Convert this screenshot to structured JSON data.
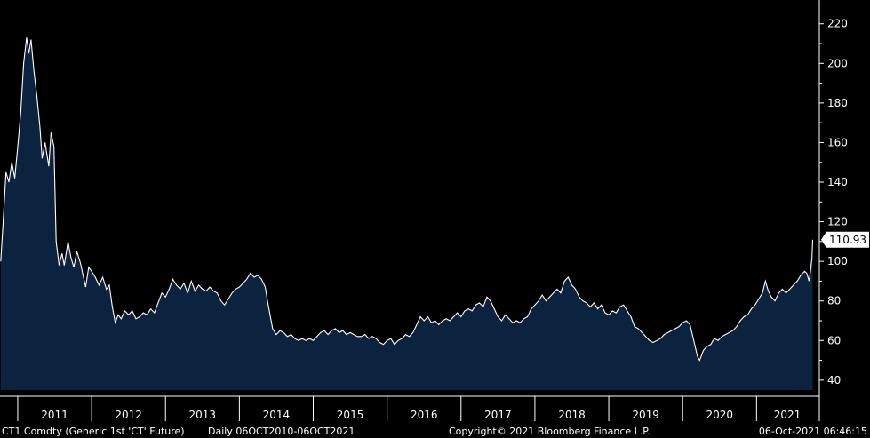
{
  "chart_data": {
    "type": "area",
    "ticker": "CT1 Comdty (Generic 1st 'CT' Future)",
    "frequency_range": "Daily 06OCT2010-06OCT2021",
    "copyright": "Copyright© 2021 Bloomberg Finance L.P.",
    "timestamp": "06-Oct-2021 06:46:15",
    "last_value": "110.93",
    "ylim": [
      35,
      232
    ],
    "xlim": [
      2010.76,
      2021.85
    ],
    "y_ticks": [
      40,
      60,
      80,
      100,
      120,
      140,
      160,
      180,
      200,
      220
    ],
    "x_ticks": [
      "2011",
      "2012",
      "2013",
      "2014",
      "2015",
      "2016",
      "2017",
      "2018",
      "2019",
      "2020",
      "2021"
    ],
    "grid": false,
    "colors": {
      "line": "#ffffff",
      "fill": "#0c2340",
      "background": "#000000",
      "label_bg": "#ffffff"
    },
    "points": [
      [
        2010.77,
        100
      ],
      [
        2010.8,
        118
      ],
      [
        2010.84,
        145
      ],
      [
        2010.88,
        140
      ],
      [
        2010.92,
        150
      ],
      [
        2010.96,
        142
      ],
      [
        2011.0,
        158
      ],
      [
        2011.04,
        175
      ],
      [
        2011.08,
        200
      ],
      [
        2011.12,
        213
      ],
      [
        2011.15,
        205
      ],
      [
        2011.18,
        212
      ],
      [
        2011.22,
        196
      ],
      [
        2011.26,
        183
      ],
      [
        2011.3,
        168
      ],
      [
        2011.33,
        152
      ],
      [
        2011.37,
        160
      ],
      [
        2011.42,
        148
      ],
      [
        2011.45,
        165
      ],
      [
        2011.49,
        158
      ],
      [
        2011.52,
        110
      ],
      [
        2011.56,
        98
      ],
      [
        2011.6,
        104
      ],
      [
        2011.63,
        98
      ],
      [
        2011.68,
        110
      ],
      [
        2011.72,
        102
      ],
      [
        2011.76,
        97
      ],
      [
        2011.8,
        105
      ],
      [
        2011.85,
        99
      ],
      [
        2011.89,
        92
      ],
      [
        2011.92,
        87
      ],
      [
        2011.96,
        97
      ],
      [
        2012.0,
        95
      ],
      [
        2012.05,
        92
      ],
      [
        2012.1,
        88
      ],
      [
        2012.15,
        92
      ],
      [
        2012.2,
        86
      ],
      [
        2012.24,
        88
      ],
      [
        2012.28,
        77
      ],
      [
        2012.32,
        69
      ],
      [
        2012.36,
        73
      ],
      [
        2012.4,
        71
      ],
      [
        2012.45,
        75
      ],
      [
        2012.5,
        73
      ],
      [
        2012.55,
        75
      ],
      [
        2012.6,
        71
      ],
      [
        2012.65,
        72
      ],
      [
        2012.7,
        74
      ],
      [
        2012.75,
        73
      ],
      [
        2012.8,
        76
      ],
      [
        2012.85,
        74
      ],
      [
        2012.9,
        79
      ],
      [
        2012.95,
        84
      ],
      [
        2013.0,
        82
      ],
      [
        2013.05,
        86
      ],
      [
        2013.1,
        91
      ],
      [
        2013.15,
        88
      ],
      [
        2013.2,
        86
      ],
      [
        2013.25,
        89
      ],
      [
        2013.3,
        84
      ],
      [
        2013.35,
        90
      ],
      [
        2013.4,
        85
      ],
      [
        2013.45,
        88
      ],
      [
        2013.5,
        86
      ],
      [
        2013.55,
        85
      ],
      [
        2013.6,
        87
      ],
      [
        2013.65,
        85
      ],
      [
        2013.7,
        84
      ],
      [
        2013.75,
        80
      ],
      [
        2013.8,
        78
      ],
      [
        2013.85,
        81
      ],
      [
        2013.9,
        84
      ],
      [
        2013.95,
        86
      ],
      [
        2014.0,
        87
      ],
      [
        2014.05,
        89
      ],
      [
        2014.1,
        91
      ],
      [
        2014.15,
        94
      ],
      [
        2014.2,
        92
      ],
      [
        2014.25,
        93
      ],
      [
        2014.3,
        91
      ],
      [
        2014.35,
        87
      ],
      [
        2014.38,
        80
      ],
      [
        2014.42,
        72
      ],
      [
        2014.45,
        66
      ],
      [
        2014.5,
        63
      ],
      [
        2014.55,
        65
      ],
      [
        2014.6,
        64
      ],
      [
        2014.65,
        62
      ],
      [
        2014.7,
        63
      ],
      [
        2014.75,
        61
      ],
      [
        2014.8,
        60
      ],
      [
        2014.85,
        61
      ],
      [
        2014.9,
        60
      ],
      [
        2014.95,
        61
      ],
      [
        2015.0,
        60
      ],
      [
        2015.05,
        62
      ],
      [
        2015.1,
        64
      ],
      [
        2015.15,
        65
      ],
      [
        2015.2,
        63
      ],
      [
        2015.25,
        65
      ],
      [
        2015.3,
        66
      ],
      [
        2015.35,
        64
      ],
      [
        2015.4,
        65
      ],
      [
        2015.45,
        63
      ],
      [
        2015.5,
        64
      ],
      [
        2015.55,
        63
      ],
      [
        2015.6,
        62
      ],
      [
        2015.65,
        62
      ],
      [
        2015.7,
        63
      ],
      [
        2015.75,
        61
      ],
      [
        2015.8,
        62
      ],
      [
        2015.85,
        61
      ],
      [
        2015.9,
        59
      ],
      [
        2015.95,
        58
      ],
      [
        2016.0,
        60
      ],
      [
        2016.05,
        61
      ],
      [
        2016.1,
        58
      ],
      [
        2016.15,
        60
      ],
      [
        2016.2,
        61
      ],
      [
        2016.25,
        63
      ],
      [
        2016.3,
        62
      ],
      [
        2016.35,
        64
      ],
      [
        2016.4,
        68
      ],
      [
        2016.45,
        72
      ],
      [
        2016.5,
        70
      ],
      [
        2016.55,
        72
      ],
      [
        2016.6,
        69
      ],
      [
        2016.65,
        70
      ],
      [
        2016.7,
        68
      ],
      [
        2016.75,
        70
      ],
      [
        2016.8,
        71
      ],
      [
        2016.85,
        70
      ],
      [
        2016.9,
        72
      ],
      [
        2016.95,
        74
      ],
      [
        2017.0,
        72
      ],
      [
        2017.05,
        75
      ],
      [
        2017.1,
        76
      ],
      [
        2017.15,
        75
      ],
      [
        2017.2,
        78
      ],
      [
        2017.25,
        79
      ],
      [
        2017.3,
        77
      ],
      [
        2017.35,
        82
      ],
      [
        2017.4,
        80
      ],
      [
        2017.45,
        76
      ],
      [
        2017.5,
        72
      ],
      [
        2017.55,
        70
      ],
      [
        2017.6,
        73
      ],
      [
        2017.65,
        71
      ],
      [
        2017.7,
        69
      ],
      [
        2017.75,
        70
      ],
      [
        2017.8,
        69
      ],
      [
        2017.85,
        71
      ],
      [
        2017.9,
        72
      ],
      [
        2017.95,
        76
      ],
      [
        2018.0,
        78
      ],
      [
        2018.05,
        80
      ],
      [
        2018.1,
        83
      ],
      [
        2018.15,
        80
      ],
      [
        2018.2,
        82
      ],
      [
        2018.25,
        84
      ],
      [
        2018.3,
        86
      ],
      [
        2018.35,
        84
      ],
      [
        2018.4,
        90
      ],
      [
        2018.45,
        92
      ],
      [
        2018.5,
        88
      ],
      [
        2018.55,
        86
      ],
      [
        2018.6,
        82
      ],
      [
        2018.65,
        80
      ],
      [
        2018.7,
        79
      ],
      [
        2018.75,
        77
      ],
      [
        2018.8,
        79
      ],
      [
        2018.85,
        76
      ],
      [
        2018.9,
        78
      ],
      [
        2018.95,
        74
      ],
      [
        2019.0,
        73
      ],
      [
        2019.05,
        75
      ],
      [
        2019.1,
        74
      ],
      [
        2019.15,
        77
      ],
      [
        2019.2,
        78
      ],
      [
        2019.25,
        75
      ],
      [
        2019.3,
        72
      ],
      [
        2019.35,
        67
      ],
      [
        2019.4,
        66
      ],
      [
        2019.45,
        64
      ],
      [
        2019.5,
        62
      ],
      [
        2019.55,
        60
      ],
      [
        2019.6,
        59
      ],
      [
        2019.65,
        60
      ],
      [
        2019.7,
        61
      ],
      [
        2019.75,
        63
      ],
      [
        2019.8,
        64
      ],
      [
        2019.85,
        65
      ],
      [
        2019.9,
        66
      ],
      [
        2019.95,
        67
      ],
      [
        2020.0,
        69
      ],
      [
        2020.05,
        70
      ],
      [
        2020.1,
        68
      ],
      [
        2020.15,
        60
      ],
      [
        2020.2,
        52
      ],
      [
        2020.23,
        50
      ],
      [
        2020.28,
        55
      ],
      [
        2020.33,
        57
      ],
      [
        2020.38,
        58
      ],
      [
        2020.43,
        61
      ],
      [
        2020.48,
        60
      ],
      [
        2020.53,
        62
      ],
      [
        2020.58,
        63
      ],
      [
        2020.63,
        64
      ],
      [
        2020.68,
        65
      ],
      [
        2020.73,
        67
      ],
      [
        2020.78,
        70
      ],
      [
        2020.83,
        72
      ],
      [
        2020.88,
        73
      ],
      [
        2020.93,
        76
      ],
      [
        2020.98,
        78
      ],
      [
        2021.03,
        81
      ],
      [
        2021.08,
        84
      ],
      [
        2021.12,
        90
      ],
      [
        2021.16,
        85
      ],
      [
        2021.2,
        82
      ],
      [
        2021.25,
        80
      ],
      [
        2021.3,
        84
      ],
      [
        2021.35,
        86
      ],
      [
        2021.4,
        84
      ],
      [
        2021.45,
        86
      ],
      [
        2021.5,
        88
      ],
      [
        2021.55,
        90
      ],
      [
        2021.6,
        93
      ],
      [
        2021.65,
        95
      ],
      [
        2021.68,
        94
      ],
      [
        2021.71,
        90
      ],
      [
        2021.73,
        95
      ],
      [
        2021.75,
        102
      ],
      [
        2021.76,
        110.93
      ]
    ]
  }
}
